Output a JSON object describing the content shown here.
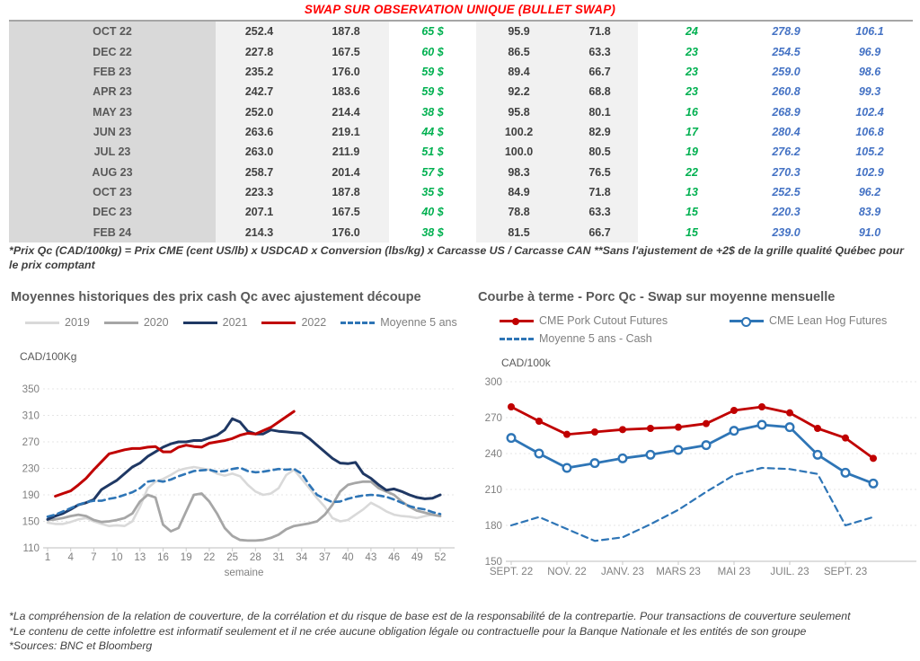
{
  "title": "SWAP SUR OBSERVATION UNIQUE (BULLET SWAP)",
  "table": {
    "rows": [
      [
        "OCT 22",
        "252.4",
        "187.8",
        "65 $",
        "95.9",
        "71.8",
        "24",
        "278.9",
        "106.1"
      ],
      [
        "DEC 22",
        "227.8",
        "167.5",
        "60 $",
        "86.5",
        "63.3",
        "23",
        "254.5",
        "96.9"
      ],
      [
        "FEB 23",
        "235.2",
        "176.0",
        "59 $",
        "89.4",
        "66.7",
        "23",
        "259.0",
        "98.6"
      ],
      [
        "APR 23",
        "242.7",
        "183.6",
        "59 $",
        "92.2",
        "68.8",
        "23",
        "260.8",
        "99.3"
      ],
      [
        "MAY 23",
        "252.0",
        "214.4",
        "38 $",
        "95.8",
        "80.1",
        "16",
        "268.9",
        "102.4"
      ],
      [
        "JUN 23",
        "263.6",
        "219.1",
        "44 $",
        "100.2",
        "82.9",
        "17",
        "280.4",
        "106.8"
      ],
      [
        "JUL 23",
        "263.0",
        "211.9",
        "51 $",
        "100.0",
        "80.5",
        "19",
        "276.2",
        "105.2"
      ],
      [
        "AUG 23",
        "258.7",
        "201.4",
        "57 $",
        "98.3",
        "76.5",
        "22",
        "270.3",
        "102.9"
      ],
      [
        "OCT 23",
        "223.3",
        "187.8",
        "35 $",
        "84.9",
        "71.8",
        "13",
        "252.5",
        "96.2"
      ],
      [
        "DEC 23",
        "207.1",
        "167.5",
        "40 $",
        "78.8",
        "63.3",
        "15",
        "220.3",
        "83.9"
      ],
      [
        "FEB 24",
        "214.3",
        "176.0",
        "38 $",
        "81.5",
        "66.7",
        "15",
        "239.0",
        "91.0"
      ]
    ],
    "footnote": "*Prix Qc (CAD/100kg) = Prix CME (cent US/lb) x USDCAD x Conversion (lbs/kg) x Carcasse US / Carcasse CAN **Sans l'ajustement de +2$ de la grille qualité Québec pour le prix comptant"
  },
  "colors": {
    "title_red": "#ff0000",
    "green": "#00b050",
    "table_blue": "#4472c4",
    "gray_2019": "#d9d9d9",
    "gray_2020": "#a6a6a6",
    "navy_2021": "#1f3864",
    "red_2022": "#c00000",
    "blue_dashed": "#2e75b6"
  },
  "chart_data": [
    {
      "type": "line",
      "title": "Moyennes historiques des prix cash Qc avec ajustement découpe",
      "ylabel": "CAD/100Kg",
      "xlabel": "semaine",
      "ylim": [
        110,
        350
      ],
      "yticks": [
        110,
        150,
        190,
        230,
        270,
        310,
        350
      ],
      "xticks": [
        1,
        4,
        7,
        10,
        13,
        16,
        19,
        22,
        25,
        28,
        31,
        34,
        37,
        40,
        43,
        46,
        49,
        52
      ],
      "grid": true,
      "legend_position": "top",
      "series": [
        {
          "name": "2019",
          "color": "#d9d9d9",
          "width": 2.6,
          "x_start": 1,
          "values": [
            148,
            146,
            146,
            149,
            153,
            155,
            150,
            146,
            143,
            144,
            143,
            150,
            172,
            200,
            210,
            214,
            220,
            227,
            230,
            232,
            230,
            228,
            222,
            219,
            222,
            218,
            205,
            195,
            190,
            192,
            200,
            220,
            228,
            214,
            200,
            185,
            172,
            155,
            150,
            152,
            160,
            168,
            178,
            172,
            165,
            160,
            158,
            157,
            155,
            158,
            160,
            158
          ]
        },
        {
          "name": "2020",
          "color": "#a6a6a6",
          "width": 2.8,
          "x_start": 1,
          "values": [
            152,
            153,
            155,
            158,
            160,
            158,
            152,
            149,
            150,
            152,
            155,
            162,
            180,
            190,
            186,
            145,
            135,
            140,
            165,
            190,
            192,
            180,
            162,
            140,
            128,
            122,
            121,
            121,
            122,
            125,
            130,
            138,
            143,
            145,
            147,
            150,
            160,
            175,
            195,
            205,
            208,
            210,
            210,
            200,
            195,
            190,
            180,
            172,
            166,
            163,
            160,
            158
          ]
        },
        {
          "name": "2021",
          "color": "#1f3864",
          "width": 3,
          "x_start": 1,
          "values": [
            153,
            158,
            162,
            168,
            175,
            178,
            183,
            198,
            205,
            212,
            222,
            232,
            238,
            248,
            255,
            262,
            267,
            270,
            270,
            272,
            272,
            276,
            280,
            288,
            305,
            300,
            286,
            282,
            282,
            288,
            286,
            285,
            284,
            283,
            275,
            265,
            255,
            245,
            238,
            237,
            239,
            222,
            215,
            205,
            197,
            199,
            195,
            190,
            186,
            184,
            185,
            190
          ]
        },
        {
          "name": "2022",
          "color": "#c00000",
          "width": 3,
          "x_start": 2,
          "values": [
            188,
            192,
            196,
            205,
            215,
            228,
            240,
            252,
            255,
            258,
            260,
            260,
            262,
            263,
            255,
            255,
            262,
            265,
            263,
            262,
            268,
            270,
            272,
            275,
            280,
            283,
            282,
            287,
            292,
            300,
            308,
            316
          ]
        },
        {
          "name": "Moyenne 5 ans",
          "color": "#2e75b6",
          "width": 2.6,
          "dash": true,
          "x_start": 1,
          "values": [
            157,
            160,
            165,
            170,
            175,
            179,
            181,
            181,
            184,
            186,
            190,
            194,
            200,
            210,
            212,
            210,
            213,
            218,
            222,
            226,
            227,
            228,
            225,
            226,
            229,
            231,
            226,
            224,
            225,
            227,
            229,
            228,
            229,
            222,
            205,
            190,
            184,
            179,
            180,
            184,
            187,
            189,
            190,
            189,
            187,
            183,
            178,
            173,
            170,
            168,
            164,
            161
          ]
        }
      ]
    },
    {
      "type": "line",
      "title": "Courbe à terme - Porc Qc - Swap sur moyenne mensuelle",
      "ylabel": "CAD/100k",
      "xlabel": "",
      "ylim": [
        150,
        300
      ],
      "yticks": [
        150,
        180,
        210,
        240,
        270,
        300
      ],
      "xticks": [
        "SEPT. 22",
        "NOV. 22",
        "JANV. 23",
        "MARS 23",
        "MAI 23",
        "JUIL. 23",
        "SEPT. 23"
      ],
      "xtick_positions": [
        0,
        2,
        4,
        6,
        8,
        10,
        12
      ],
      "x_categories_count": 14,
      "grid": true,
      "legend_position": "top",
      "series": [
        {
          "name": "CME Pork Cutout Futures",
          "color": "#c00000",
          "width": 2.8,
          "marker": "filled",
          "x_start": 0,
          "values": [
            279,
            267,
            256,
            258,
            260,
            261,
            262,
            265,
            276,
            279,
            274,
            261,
            253,
            236
          ]
        },
        {
          "name": "CME Lean Hog Futures",
          "color": "#2e75b6",
          "width": 2.8,
          "marker": "open",
          "x_start": 0,
          "values": [
            253,
            240,
            228,
            232,
            236,
            239,
            243,
            247,
            259,
            264,
            262,
            239,
            224,
            215
          ]
        },
        {
          "name": "Moyenne 5 ans - Cash",
          "color": "#2e75b6",
          "width": 2.2,
          "dash": true,
          "x_start": 0,
          "values": [
            180,
            187,
            177,
            167,
            170,
            181,
            193,
            208,
            222,
            228,
            227,
            223,
            180,
            187
          ]
        }
      ]
    }
  ],
  "footer": {
    "lines": [
      "*La compréhension de la relation de couverture, de la corrélation et du risque de base est de la responsabilité de la contrepartie. Pour transactions de couverture seulement",
      "*Le contenu de cette infolettre est informatif seulement et il ne crée aucune obligation légale ou contractuelle pour la Banque Nationale et les entités de son groupe",
      "*Sources: BNC et Bloomberg"
    ]
  }
}
